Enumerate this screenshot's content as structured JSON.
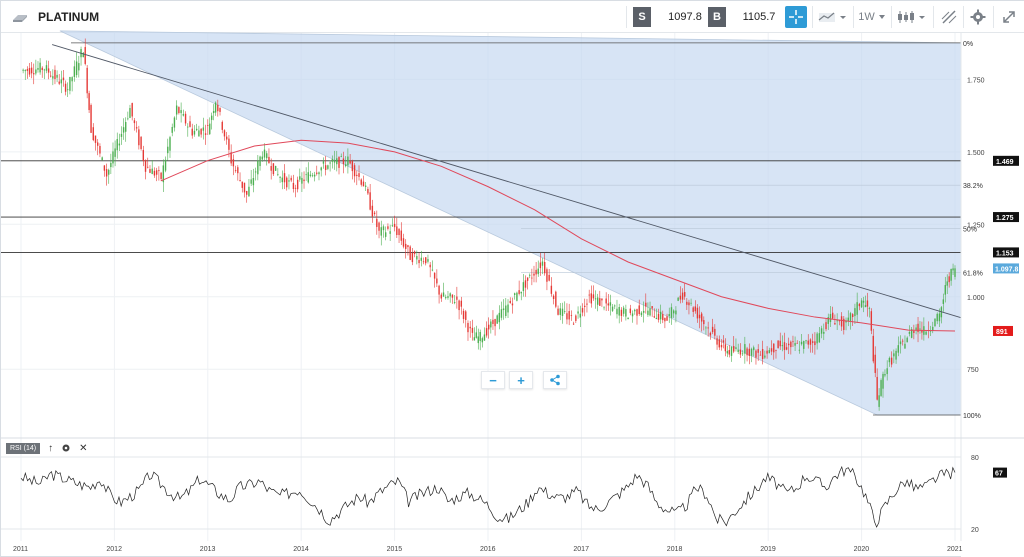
{
  "toolbar": {
    "symbol": "PLATINUM",
    "sell_label": "S",
    "sell_price": "1097.8",
    "buy_label": "B",
    "buy_price": "1105.7",
    "timeframe": "1W",
    "icons": [
      "platinum-bars-icon",
      "crosshair-icon",
      "line-chart-icon",
      "candlestick-icon",
      "draw-tool-icon",
      "gear-icon",
      "expand-icon"
    ]
  },
  "chart_data": [
    {
      "type": "line",
      "subtype": "candlestick",
      "title": "",
      "x_ticks": [
        "2011",
        "2012",
        "2013",
        "2014",
        "2015",
        "2016",
        "2017",
        "2018",
        "2019",
        "2020",
        "2021"
      ],
      "y_ticks": [
        "1.750",
        "1.500",
        "1.250",
        "1.000",
        "750"
      ],
      "ylim": [
        530,
        1910
      ],
      "series": [
        {
          "type": "candlestick",
          "x": [
            "2011-01",
            "2011-04",
            "2011-07",
            "2011-09",
            "2011-10",
            "2011-12",
            "2012-03",
            "2012-05",
            "2012-07",
            "2012-09",
            "2012-11",
            "2013-01",
            "2013-02",
            "2013-04",
            "2013-06",
            "2013-08",
            "2013-10",
            "2013-12",
            "2014-03",
            "2014-05",
            "2014-07",
            "2014-09",
            "2014-11",
            "2015-01",
            "2015-03",
            "2015-05",
            "2015-07",
            "2015-09",
            "2015-11",
            "2015-12",
            "2016-03",
            "2016-05",
            "2016-08",
            "2016-10",
            "2016-12",
            "2017-02",
            "2017-05",
            "2017-07",
            "2017-09",
            "2017-12",
            "2018-02",
            "2018-05",
            "2018-07",
            "2018-08",
            "2018-10",
            "2018-12",
            "2019-02",
            "2019-05",
            "2019-07",
            "2019-09",
            "2019-11",
            "2020-01",
            "2020-02",
            "2020-03",
            "2020-04",
            "2020-06",
            "2020-08",
            "2020-09",
            "2020-11",
            "2020-12",
            "2021-01"
          ],
          "close": [
            1780,
            1790,
            1720,
            1860,
            1580,
            1420,
            1650,
            1450,
            1410,
            1650,
            1570,
            1580,
            1680,
            1470,
            1350,
            1500,
            1420,
            1380,
            1440,
            1460,
            1470,
            1390,
            1220,
            1240,
            1140,
            1130,
            1000,
            990,
            860,
            860,
            950,
            1020,
            1120,
            950,
            920,
            1000,
            960,
            940,
            960,
            920,
            1010,
            900,
            830,
            810,
            820,
            800,
            830,
            830,
            850,
            930,
            900,
            990,
            950,
            640,
            750,
            830,
            900,
            880,
            930,
            1060,
            1097.8
          ]
        },
        {
          "name": "",
          "type": "moving-average",
          "color": "#e0485a",
          "values": [
            1400,
            1470,
            1520,
            1540,
            1530,
            1500,
            1450,
            1380,
            1300,
            1200,
            1120,
            1060,
            1000,
            960,
            930,
            910,
            885,
            882
          ]
        },
        {
          "name": "",
          "type": "trendline",
          "values": [
            1870,
            928
          ]
        }
      ],
      "fibonacci": {
        "levels": [
          "0%",
          "38.2%",
          "50%",
          "61.8%",
          "100%"
        ],
        "values": [
          1876,
          1385,
          1235,
          1083,
          592
        ]
      },
      "horizontal_lines": [
        {
          "label": "1.469",
          "value": 1469
        },
        {
          "label": "1.275",
          "value": 1275
        },
        {
          "label": "1.153",
          "value": 1153
        }
      ],
      "current_price_label": "1.097.8",
      "ma_label": "891",
      "colors": {
        "up": "#4caf50",
        "down": "#e53935",
        "fill": "#c6d9f1",
        "ma": "#e0485a",
        "current": "#5aa9dc"
      }
    },
    {
      "type": "line",
      "title": "RSI (14)",
      "y_ticks": [
        "80",
        "20"
      ],
      "ylim": [
        10,
        85
      ],
      "current_label": "67",
      "series": [
        {
          "name": "RSI (14)",
          "values": [
            64,
            60,
            58,
            66,
            63,
            60,
            57,
            55,
            62,
            48,
            42,
            47,
            53,
            66,
            58,
            50,
            45,
            52,
            62,
            56,
            49,
            44,
            55,
            57,
            60,
            52,
            48,
            50,
            53,
            45,
            37,
            27,
            34,
            41,
            47,
            42,
            50,
            56,
            60,
            43,
            48,
            52,
            55,
            43,
            47,
            50,
            46,
            40,
            30,
            28,
            35,
            42,
            55,
            50,
            46,
            47,
            52,
            40,
            36,
            42,
            48,
            55,
            65,
            57,
            42,
            36,
            33,
            40,
            55,
            49,
            28,
            26,
            36,
            45,
            53,
            63,
            58,
            50,
            54,
            65,
            60,
            55,
            65,
            70,
            64,
            48,
            25,
            40,
            52,
            60,
            54,
            55,
            62,
            66,
            67
          ]
        }
      ]
    }
  ],
  "zoom": {
    "minus": "−",
    "plus": "+"
  },
  "rsi_header": {
    "label": "RSI (14)"
  }
}
